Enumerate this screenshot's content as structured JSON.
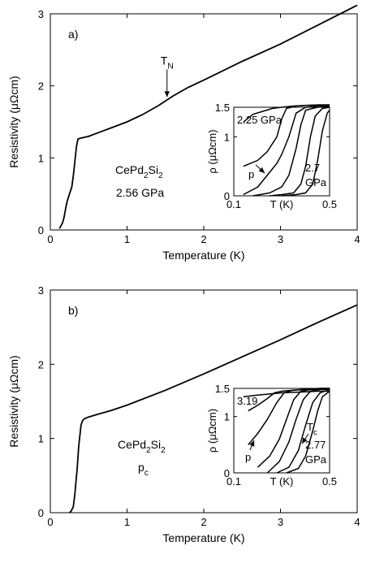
{
  "chart_data": [
    {
      "type": "line",
      "panel_label": "a)",
      "xlabel": "Temperature  (K)",
      "ylabel": "Resistivity  (μΩcm)",
      "xlim": [
        0,
        4
      ],
      "ylim": [
        0,
        3
      ],
      "xticks": [
        "0",
        "1",
        "2",
        "3",
        "4"
      ],
      "yticks": [
        "0",
        "1",
        "2",
        "3"
      ],
      "compound": {
        "base": "CePd",
        "sub1": "2",
        "mid": "Si",
        "sub2": "2"
      },
      "condition": "2.56 GPa",
      "annotation": {
        "label": "T",
        "sub": "N",
        "x": 1.5,
        "y": 1.8
      },
      "series": [
        {
          "x": [
            0.12,
            0.14,
            0.16,
            0.18,
            0.2,
            0.22,
            0.25,
            0.28,
            0.3,
            0.32,
            0.34,
            0.36,
            0.38,
            0.42,
            0.5,
            0.6,
            0.8,
            1.0,
            1.2,
            1.4,
            1.5,
            1.6,
            1.8,
            2.0,
            2.5,
            3.0,
            3.5,
            4.0
          ],
          "y": [
            0.02,
            0.06,
            0.1,
            0.18,
            0.3,
            0.4,
            0.5,
            0.6,
            0.75,
            0.95,
            1.15,
            1.26,
            1.27,
            1.28,
            1.3,
            1.34,
            1.42,
            1.5,
            1.6,
            1.72,
            1.79,
            1.86,
            1.98,
            2.08,
            2.34,
            2.58,
            2.85,
            3.12
          ]
        }
      ],
      "inset": {
        "xlabel": "T  (K)",
        "ylabel": "ρ  (μΩcm)",
        "xlim": [
          0.1,
          0.5
        ],
        "ylim": [
          0,
          1.5
        ],
        "xticks": [
          "0.1",
          "0.5"
        ],
        "yticks": [
          "0",
          "1",
          "1.5"
        ],
        "top_label": "2.25 GPa",
        "pressure_label": "p",
        "end_label_1": "2.7",
        "end_label_2": "GPa",
        "series": [
          {
            "x": [
              0.14,
              0.18,
              0.22,
              0.26,
              0.3,
              0.35,
              0.4,
              0.45,
              0.5
            ],
            "y": [
              1.25,
              1.38,
              1.43,
              1.48,
              1.5,
              1.52,
              1.53,
              1.54,
              1.54
            ]
          },
          {
            "x": [
              0.14,
              0.2,
              0.24,
              0.28,
              0.3,
              0.32,
              0.36,
              0.4,
              0.45,
              0.5
            ],
            "y": [
              0.5,
              0.6,
              0.75,
              1.0,
              1.3,
              1.48,
              1.52,
              1.53,
              1.54,
              1.54
            ]
          },
          {
            "x": [
              0.14,
              0.2,
              0.25,
              0.28,
              0.3,
              0.33,
              0.36,
              0.4,
              0.45,
              0.5
            ],
            "y": [
              0.02,
              0.15,
              0.4,
              0.55,
              0.7,
              1.0,
              1.4,
              1.5,
              1.52,
              1.52
            ]
          },
          {
            "x": [
              0.18,
              0.25,
              0.3,
              0.33,
              0.36,
              0.38,
              0.4,
              0.45,
              0.5
            ],
            "y": [
              0.0,
              0.05,
              0.15,
              0.35,
              0.8,
              1.2,
              1.45,
              1.5,
              1.52
            ]
          },
          {
            "x": [
              0.25,
              0.3,
              0.35,
              0.38,
              0.4,
              0.42,
              0.44,
              0.47,
              0.5
            ],
            "y": [
              0.0,
              0.02,
              0.05,
              0.2,
              0.5,
              1.0,
              1.35,
              1.48,
              1.5
            ]
          },
          {
            "x": [
              0.3,
              0.36,
              0.4,
              0.43,
              0.45,
              0.47,
              0.49,
              0.5
            ],
            "y": [
              0.0,
              0.02,
              0.05,
              0.2,
              0.6,
              1.1,
              1.4,
              1.45
            ]
          }
        ]
      }
    },
    {
      "type": "line",
      "panel_label": "b)",
      "xlabel": "Temperature  (K)",
      "ylabel": "Resistivity  (μΩcm)",
      "xlim": [
        0,
        4
      ],
      "ylim": [
        0,
        3
      ],
      "xticks": [
        "0",
        "1",
        "2",
        "3",
        "4"
      ],
      "yticks": [
        "0",
        "1",
        "2",
        "3"
      ],
      "compound": {
        "base": "CePd",
        "sub1": "2",
        "mid": "Si",
        "sub2": "2"
      },
      "condition": {
        "label": "p",
        "sub": "c"
      },
      "series": [
        {
          "x": [
            0.25,
            0.27,
            0.3,
            0.32,
            0.35,
            0.37,
            0.4,
            0.42,
            0.45,
            0.5,
            0.6,
            0.8,
            1.0,
            1.5,
            2.0,
            2.5,
            3.0,
            3.5,
            4.0
          ],
          "y": [
            0.0,
            0.02,
            0.08,
            0.25,
            0.6,
            0.9,
            1.18,
            1.24,
            1.27,
            1.29,
            1.32,
            1.38,
            1.45,
            1.65,
            1.87,
            2.1,
            2.33,
            2.57,
            2.8
          ]
        }
      ],
      "inset": {
        "xlabel": "T  (K)",
        "ylabel": "ρ  (μΩcm)",
        "xlim": [
          0.1,
          0.5
        ],
        "ylim": [
          0,
          1.5
        ],
        "xticks": [
          "0.1",
          "0.5"
        ],
        "yticks": [
          "0",
          "1",
          "1.5"
        ],
        "top_label": "3.19",
        "pressure_label": "p",
        "tc_label": {
          "label": "T",
          "sub": "c"
        },
        "end_label_1": "2.77",
        "end_label_2": "GPa",
        "series": [
          {
            "x": [
              0.14,
              0.2,
              0.25,
              0.3,
              0.35,
              0.4,
              0.45,
              0.5
            ],
            "y": [
              1.35,
              1.38,
              1.4,
              1.42,
              1.43,
              1.44,
              1.45,
              1.45
            ]
          },
          {
            "x": [
              0.16,
              0.2,
              0.24,
              0.27,
              0.3,
              0.35,
              0.4,
              0.45,
              0.5
            ],
            "y": [
              1.1,
              1.2,
              1.32,
              1.42,
              1.45,
              1.47,
              1.48,
              1.48,
              1.48
            ]
          },
          {
            "x": [
              0.16,
              0.2,
              0.24,
              0.28,
              0.31,
              0.34,
              0.38,
              0.42,
              0.46,
              0.5
            ],
            "y": [
              0.5,
              0.7,
              0.95,
              1.25,
              1.42,
              1.46,
              1.48,
              1.49,
              1.5,
              1.5
            ]
          },
          {
            "x": [
              0.2,
              0.25,
              0.29,
              0.32,
              0.35,
              0.38,
              0.42,
              0.46,
              0.5
            ],
            "y": [
              0.1,
              0.3,
              0.6,
              0.95,
              1.3,
              1.45,
              1.48,
              1.5,
              1.5
            ]
          },
          {
            "x": [
              0.24,
              0.29,
              0.33,
              0.36,
              0.39,
              0.42,
              0.46,
              0.5
            ],
            "y": [
              0.0,
              0.2,
              0.55,
              0.95,
              1.3,
              1.45,
              1.48,
              1.5
            ]
          },
          {
            "x": [
              0.28,
              0.33,
              0.37,
              0.4,
              0.43,
              0.46,
              0.5
            ],
            "y": [
              0.0,
              0.1,
              0.4,
              0.85,
              1.25,
              1.42,
              1.48
            ]
          },
          {
            "x": [
              0.32,
              0.37,
              0.4,
              0.43,
              0.45,
              0.47,
              0.5
            ],
            "y": [
              0.0,
              0.08,
              0.3,
              0.75,
              1.1,
              1.35,
              1.45
            ]
          }
        ]
      }
    }
  ]
}
